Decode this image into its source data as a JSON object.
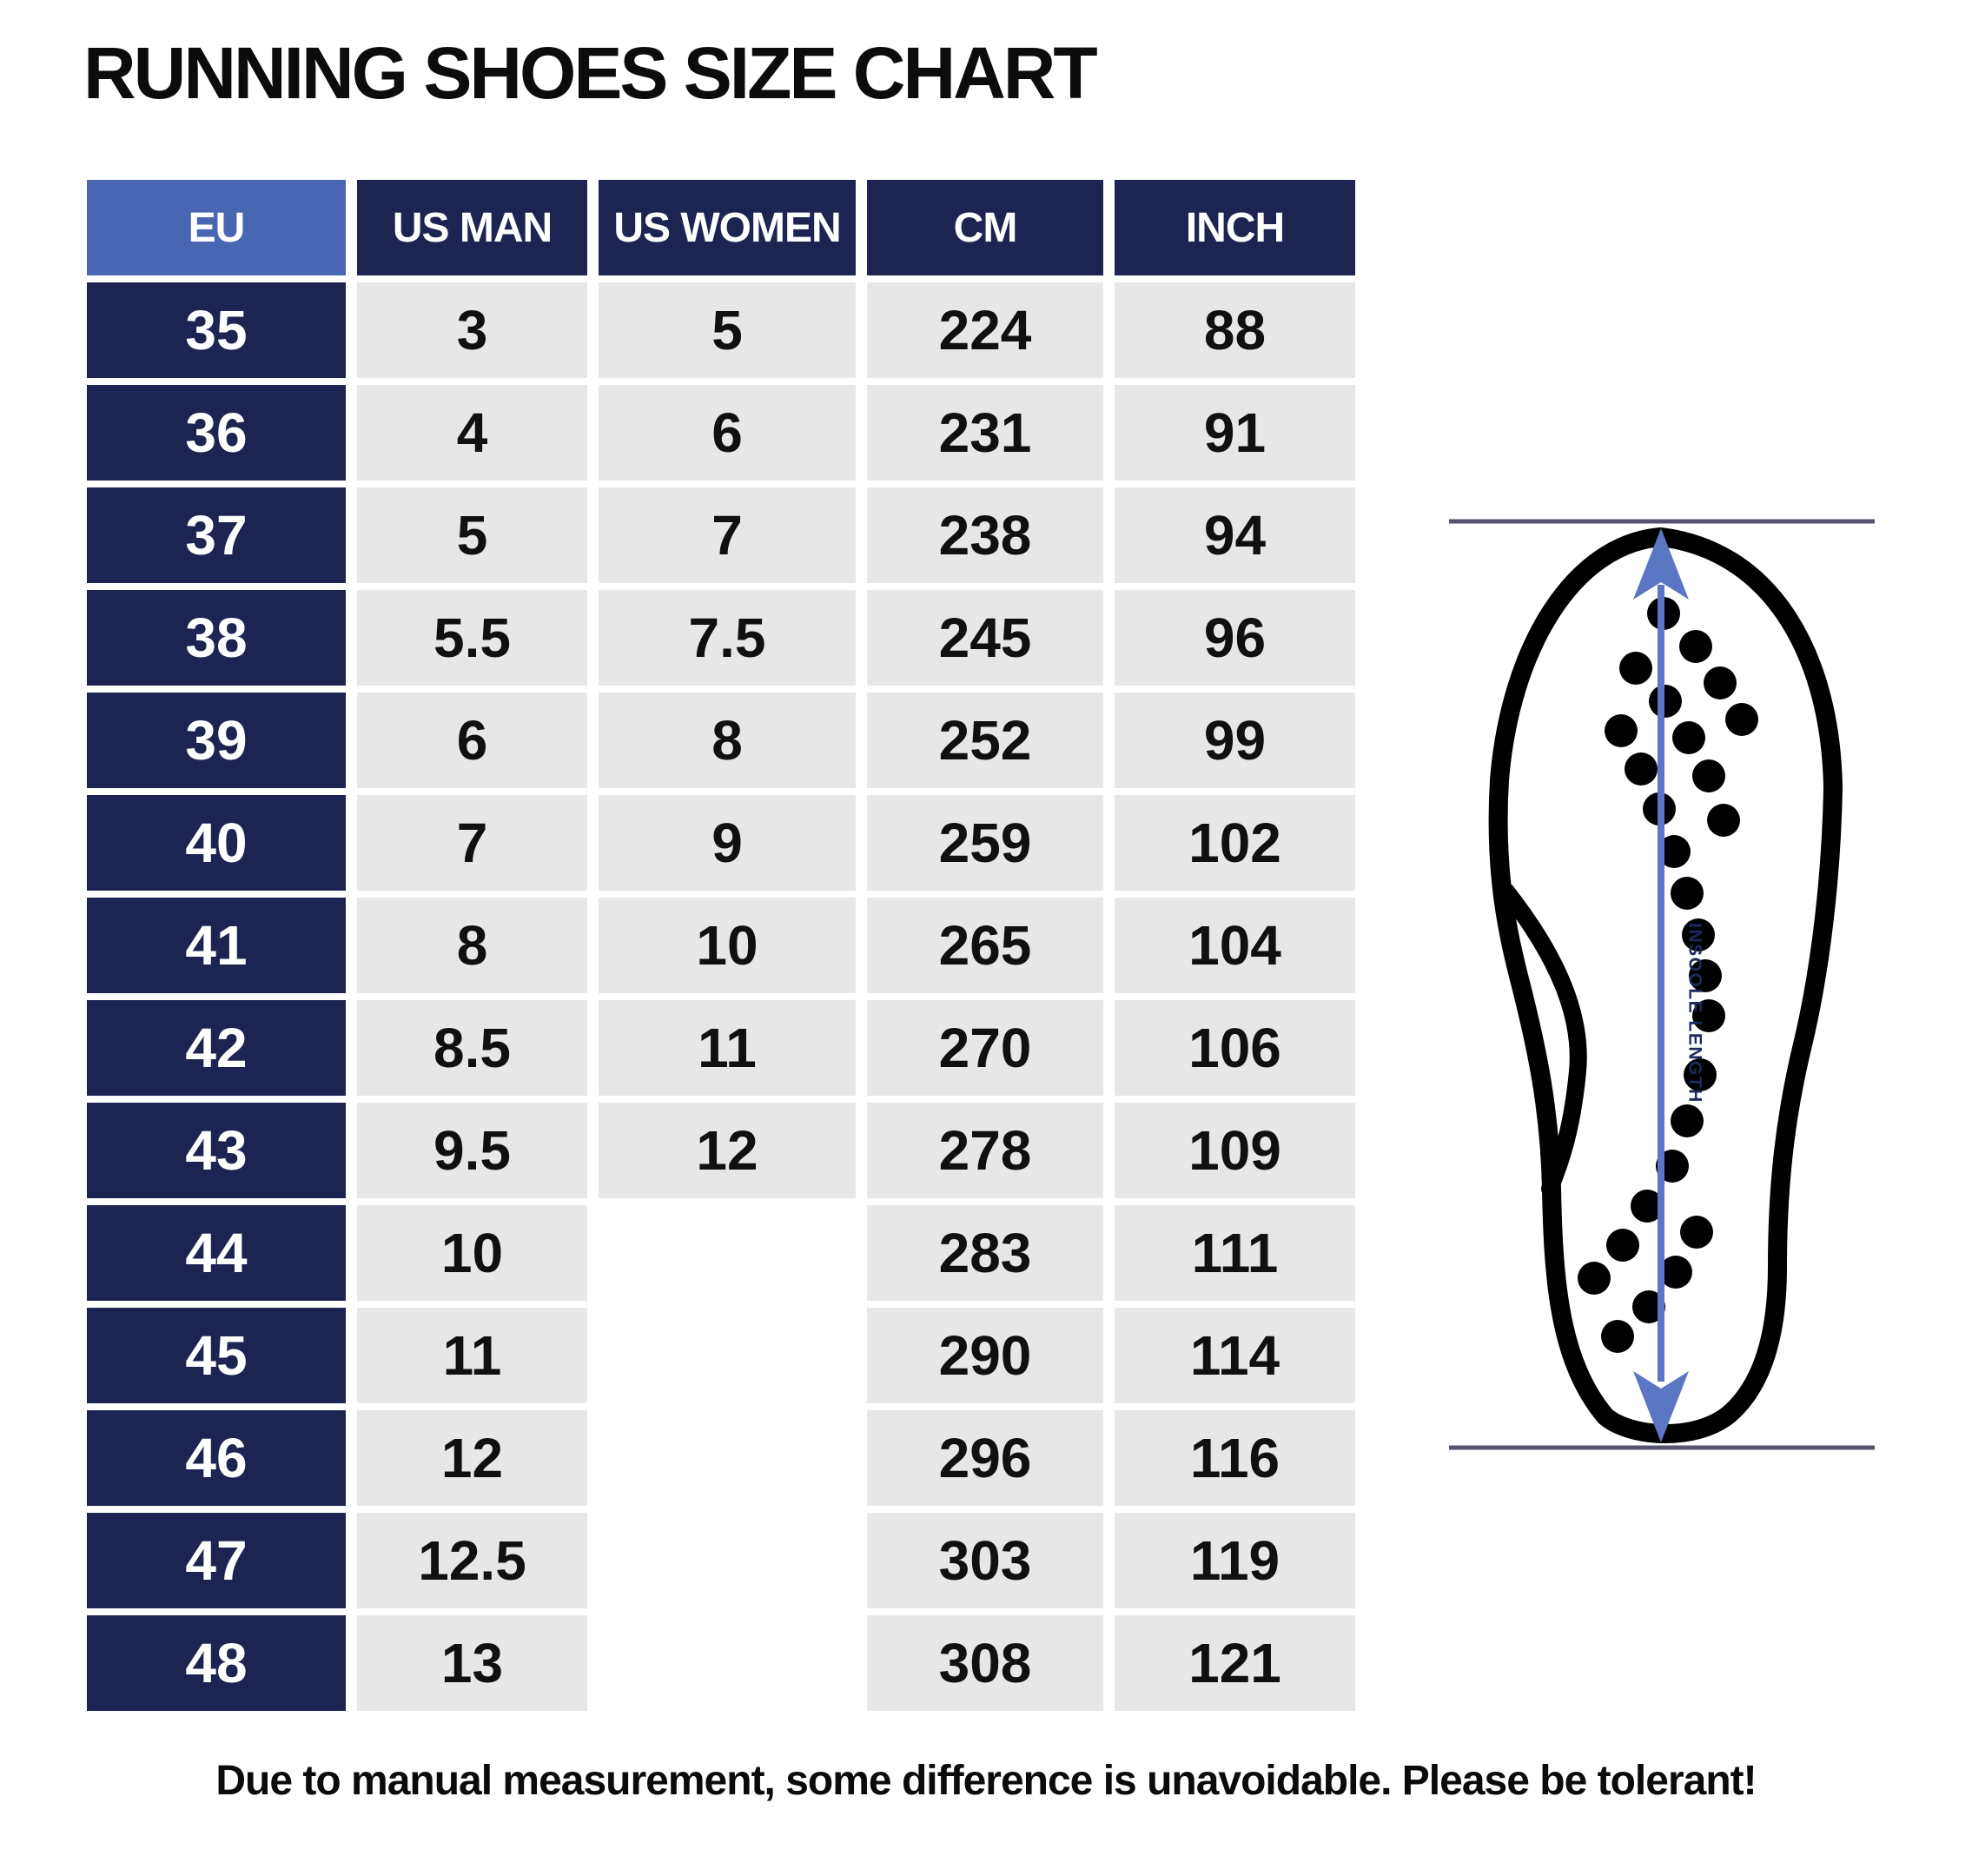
{
  "page": {
    "title": "RUNNING SHOES SIZE CHART",
    "footer_note": "Due to manual measurement, some difference is unavoidable. Please be tolerant!"
  },
  "table": {
    "headers": [
      "EU",
      "US MAN",
      "US WOMEN",
      "CM",
      "INCH"
    ],
    "rows": [
      {
        "eu": "35",
        "us_man": "3",
        "us_women": "5",
        "cm": "224",
        "inch": "88"
      },
      {
        "eu": "36",
        "us_man": "4",
        "us_women": "6",
        "cm": "231",
        "inch": "91"
      },
      {
        "eu": "37",
        "us_man": "5",
        "us_women": "7",
        "cm": "238",
        "inch": "94"
      },
      {
        "eu": "38",
        "us_man": "5.5",
        "us_women": "7.5",
        "cm": "245",
        "inch": "96"
      },
      {
        "eu": "39",
        "us_man": "6",
        "us_women": "8",
        "cm": "252",
        "inch": "99"
      },
      {
        "eu": "40",
        "us_man": "7",
        "us_women": "9",
        "cm": "259",
        "inch": "102"
      },
      {
        "eu": "41",
        "us_man": "8",
        "us_women": "10",
        "cm": "265",
        "inch": "104"
      },
      {
        "eu": "42",
        "us_man": "8.5",
        "us_women": "11",
        "cm": "270",
        "inch": "106"
      },
      {
        "eu": "43",
        "us_man": "9.5",
        "us_women": "12",
        "cm": "278",
        "inch": "109"
      },
      {
        "eu": "44",
        "us_man": "10",
        "us_women": "",
        "cm": "283",
        "inch": "111"
      },
      {
        "eu": "45",
        "us_man": "11",
        "us_women": "",
        "cm": "290",
        "inch": "114"
      },
      {
        "eu": "46",
        "us_man": "12",
        "us_women": "",
        "cm": "296",
        "inch": "116"
      },
      {
        "eu": "47",
        "us_man": "12.5",
        "us_women": "",
        "cm": "303",
        "inch": "119"
      },
      {
        "eu": "48",
        "us_man": "13",
        "us_women": "",
        "cm": "308",
        "inch": "121"
      }
    ]
  },
  "illustration": {
    "label": "INSOOLE LENGTH"
  },
  "colors": {
    "header_eu_bg": "#4866b2",
    "navy": "#1d2452",
    "cell_bg": "#e7e7e7",
    "arrow_blue": "#5b77c4",
    "line_slate": "#54546e",
    "label_navy": "#1c2a5c"
  }
}
